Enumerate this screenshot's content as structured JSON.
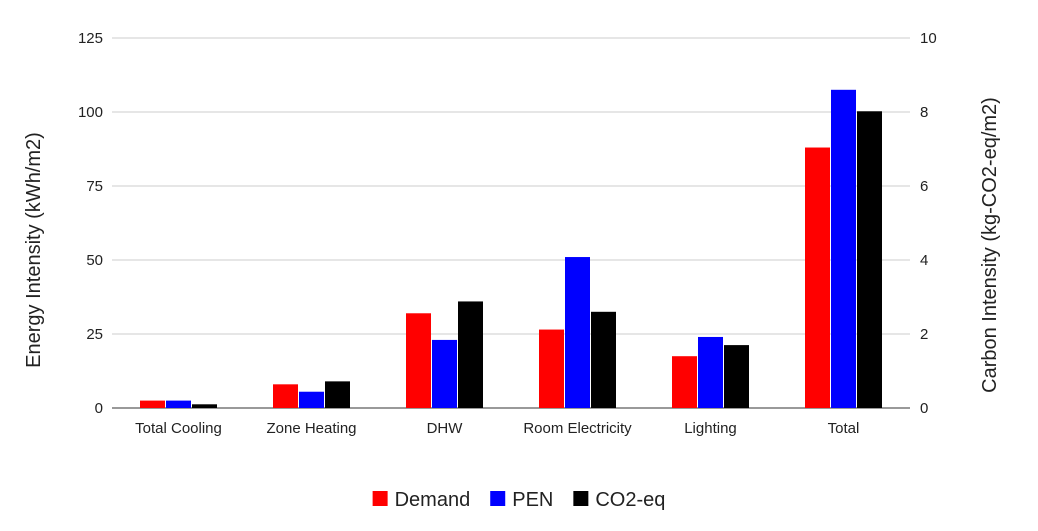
{
  "chart_data": {
    "type": "bar",
    "title": "",
    "categories": [
      "Total Cooling",
      "Zone Heating",
      "DHW",
      "Room Electricity",
      "Lighting",
      "Total"
    ],
    "series": [
      {
        "name": "Demand",
        "axis": "left",
        "color": "#ff0000",
        "values": [
          2.5,
          8,
          32,
          26.5,
          17.5,
          88
        ]
      },
      {
        "name": "PEN",
        "axis": "left",
        "color": "#0000ff",
        "values": [
          2.5,
          5.5,
          23,
          51,
          24,
          107.5
        ]
      },
      {
        "name": "CO2-eq",
        "axis": "right",
        "color": "#000000",
        "values": [
          0.1,
          0.72,
          2.88,
          2.6,
          1.7,
          8.02
        ]
      }
    ],
    "ylabel": "Energy Intensity (kWh/m2)",
    "ylabel_right": "Carbon Intensity (kg-CO2-eq/m2)",
    "ylim": [
      0,
      125
    ],
    "ylim_right": [
      0,
      10
    ],
    "yticks": [
      0,
      25,
      50,
      75,
      100,
      125
    ],
    "yticks_right": [
      0,
      2,
      4,
      6,
      8,
      10
    ],
    "grid": true,
    "legend": "bottom"
  }
}
